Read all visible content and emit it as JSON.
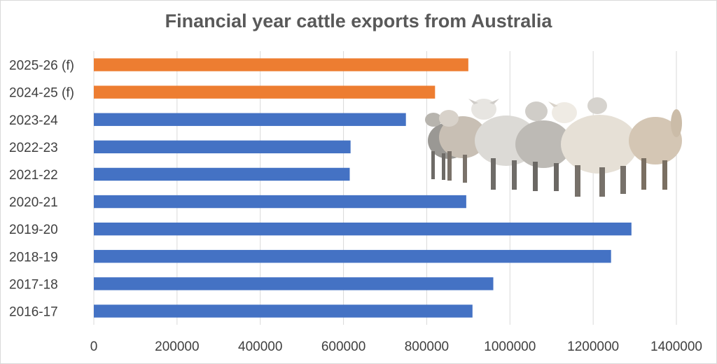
{
  "chart_data": {
    "type": "bar",
    "orientation": "horizontal",
    "title": "Financial year cattle exports from Australia",
    "xlabel": "",
    "ylabel": "",
    "categories": [
      "2016-17",
      "2017-18",
      "2018-19",
      "2019-20",
      "2020-21",
      "2021-22",
      "2022-23",
      "2023-24",
      "2024-25 (f)",
      "2025-26 (f)"
    ],
    "values": [
      910000,
      960000,
      1243000,
      1292000,
      895000,
      615000,
      617000,
      750000,
      820000,
      900000
    ],
    "bar_colors": [
      "#4472c4",
      "#4472c4",
      "#4472c4",
      "#4472c4",
      "#4472c4",
      "#4472c4",
      "#4472c4",
      "#4472c4",
      "#ed7d31",
      "#ed7d31"
    ],
    "xlim": [
      0,
      1400000
    ],
    "xticks": [
      0,
      200000,
      400000,
      600000,
      800000,
      1000000,
      1200000,
      1400000
    ],
    "xtick_labels": [
      "0",
      "200000",
      "400000",
      "600000",
      "800000",
      "1000000",
      "1200000",
      "1400000"
    ],
    "grid": "vertical",
    "legend": "none"
  },
  "decoration": {
    "photo": "cattle-herd-photo"
  }
}
